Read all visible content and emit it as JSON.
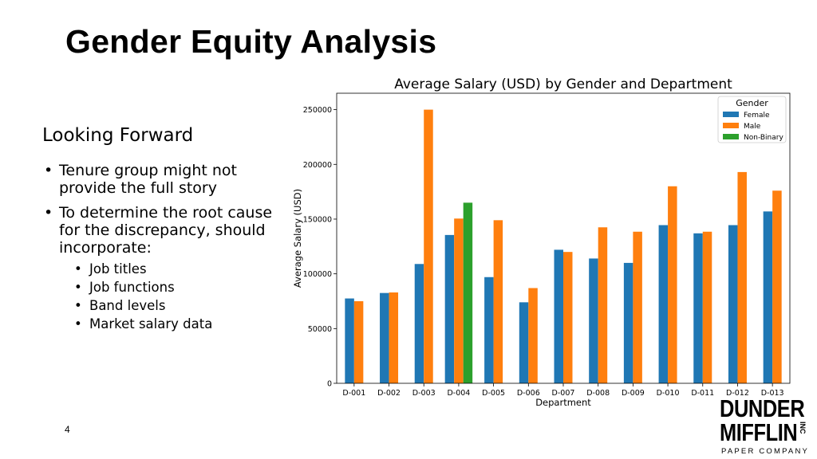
{
  "slide": {
    "title": "Gender Equity Analysis",
    "section_heading": "Looking Forward",
    "bullets": [
      "Tenure group might not provide the full story",
      "To determine the root cause for the discrepancy, should incorporate:"
    ],
    "sub_bullets": [
      "Job titles",
      "Job functions",
      "Band levels",
      "Market salary data"
    ],
    "page_number": "4",
    "logo": {
      "line1": "DUNDER",
      "line2": "MIFFLIN",
      "inc": "INC",
      "tagline": "PAPER COMPANY"
    }
  },
  "chart_data": {
    "type": "bar",
    "title": "Average Salary (USD) by Gender and Department",
    "xlabel": "Department",
    "ylabel": "Average Salary (USD)",
    "ylim": [
      0,
      265000
    ],
    "yticks": [
      0,
      50000,
      100000,
      150000,
      200000,
      250000
    ],
    "ytick_labels": [
      "0",
      "50000",
      "100000",
      "150000",
      "200000",
      "250000"
    ],
    "grid": false,
    "legend": {
      "title": "Gender",
      "placement": "top-right"
    },
    "categories": [
      "D-001",
      "D-002",
      "D-003",
      "D-004",
      "D-005",
      "D-006",
      "D-007",
      "D-008",
      "D-009",
      "D-010",
      "D-011",
      "D-012",
      "D-013"
    ],
    "series": [
      {
        "name": "Female",
        "color": "#1f77b4",
        "values": [
          77500,
          82500,
          109000,
          135500,
          97000,
          74000,
          122000,
          114000,
          110000,
          144500,
          137000,
          144500,
          157000
        ]
      },
      {
        "name": "Male",
        "color": "#ff7f0e",
        "values": [
          75000,
          83000,
          250000,
          150500,
          149000,
          87000,
          120000,
          142500,
          138500,
          180000,
          138500,
          193000,
          176000
        ]
      },
      {
        "name": "Non-Binary",
        "color": "#2ca02c",
        "values": [
          null,
          null,
          null,
          165000,
          null,
          null,
          null,
          null,
          null,
          null,
          null,
          null,
          null
        ]
      }
    ]
  }
}
